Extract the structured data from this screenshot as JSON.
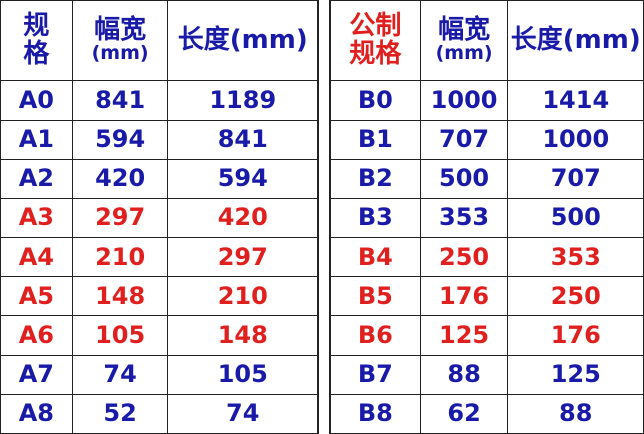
{
  "headers_left": {
    "spec": "规格",
    "width": "幅宽",
    "width_unit": "(mm)",
    "length": "长度(mm)"
  },
  "headers_right": {
    "spec": "公制规格",
    "width": "幅宽",
    "width_unit": "(mm)",
    "length": "长度(mm)"
  },
  "colors": {
    "normal": "#1a1aa8",
    "highlight": "#e01f1f"
  },
  "a_series": [
    {
      "spec": "A0",
      "width": "841",
      "length": "1189",
      "highlight": false
    },
    {
      "spec": "A1",
      "width": "594",
      "length": "841",
      "highlight": false
    },
    {
      "spec": "A2",
      "width": "420",
      "length": "594",
      "highlight": false
    },
    {
      "spec": "A3",
      "width": "297",
      "length": "420",
      "highlight": true
    },
    {
      "spec": "A4",
      "width": "210",
      "length": "297",
      "highlight": true
    },
    {
      "spec": "A5",
      "width": "148",
      "length": "210",
      "highlight": true
    },
    {
      "spec": "A6",
      "width": "105",
      "length": "148",
      "highlight": true
    },
    {
      "spec": "A7",
      "width": "74",
      "length": "105",
      "highlight": false
    },
    {
      "spec": "A8",
      "width": "52",
      "length": "74",
      "highlight": false
    }
  ],
  "b_series": [
    {
      "spec": "B0",
      "width": "1000",
      "length": "1414",
      "highlight": false
    },
    {
      "spec": "B1",
      "width": "707",
      "length": "1000",
      "highlight": false
    },
    {
      "spec": "B2",
      "width": "500",
      "length": "707",
      "highlight": false
    },
    {
      "spec": "B3",
      "width": "353",
      "length": "500",
      "highlight": false
    },
    {
      "spec": "B4",
      "width": "250",
      "length": "353",
      "highlight": true
    },
    {
      "spec": "B5",
      "width": "176",
      "length": "250",
      "highlight": true
    },
    {
      "spec": "B6",
      "width": "125",
      "length": "176",
      "highlight": true
    },
    {
      "spec": "B7",
      "width": "88",
      "length": "125",
      "highlight": false
    },
    {
      "spec": "B8",
      "width": "62",
      "length": "88",
      "highlight": false
    }
  ]
}
